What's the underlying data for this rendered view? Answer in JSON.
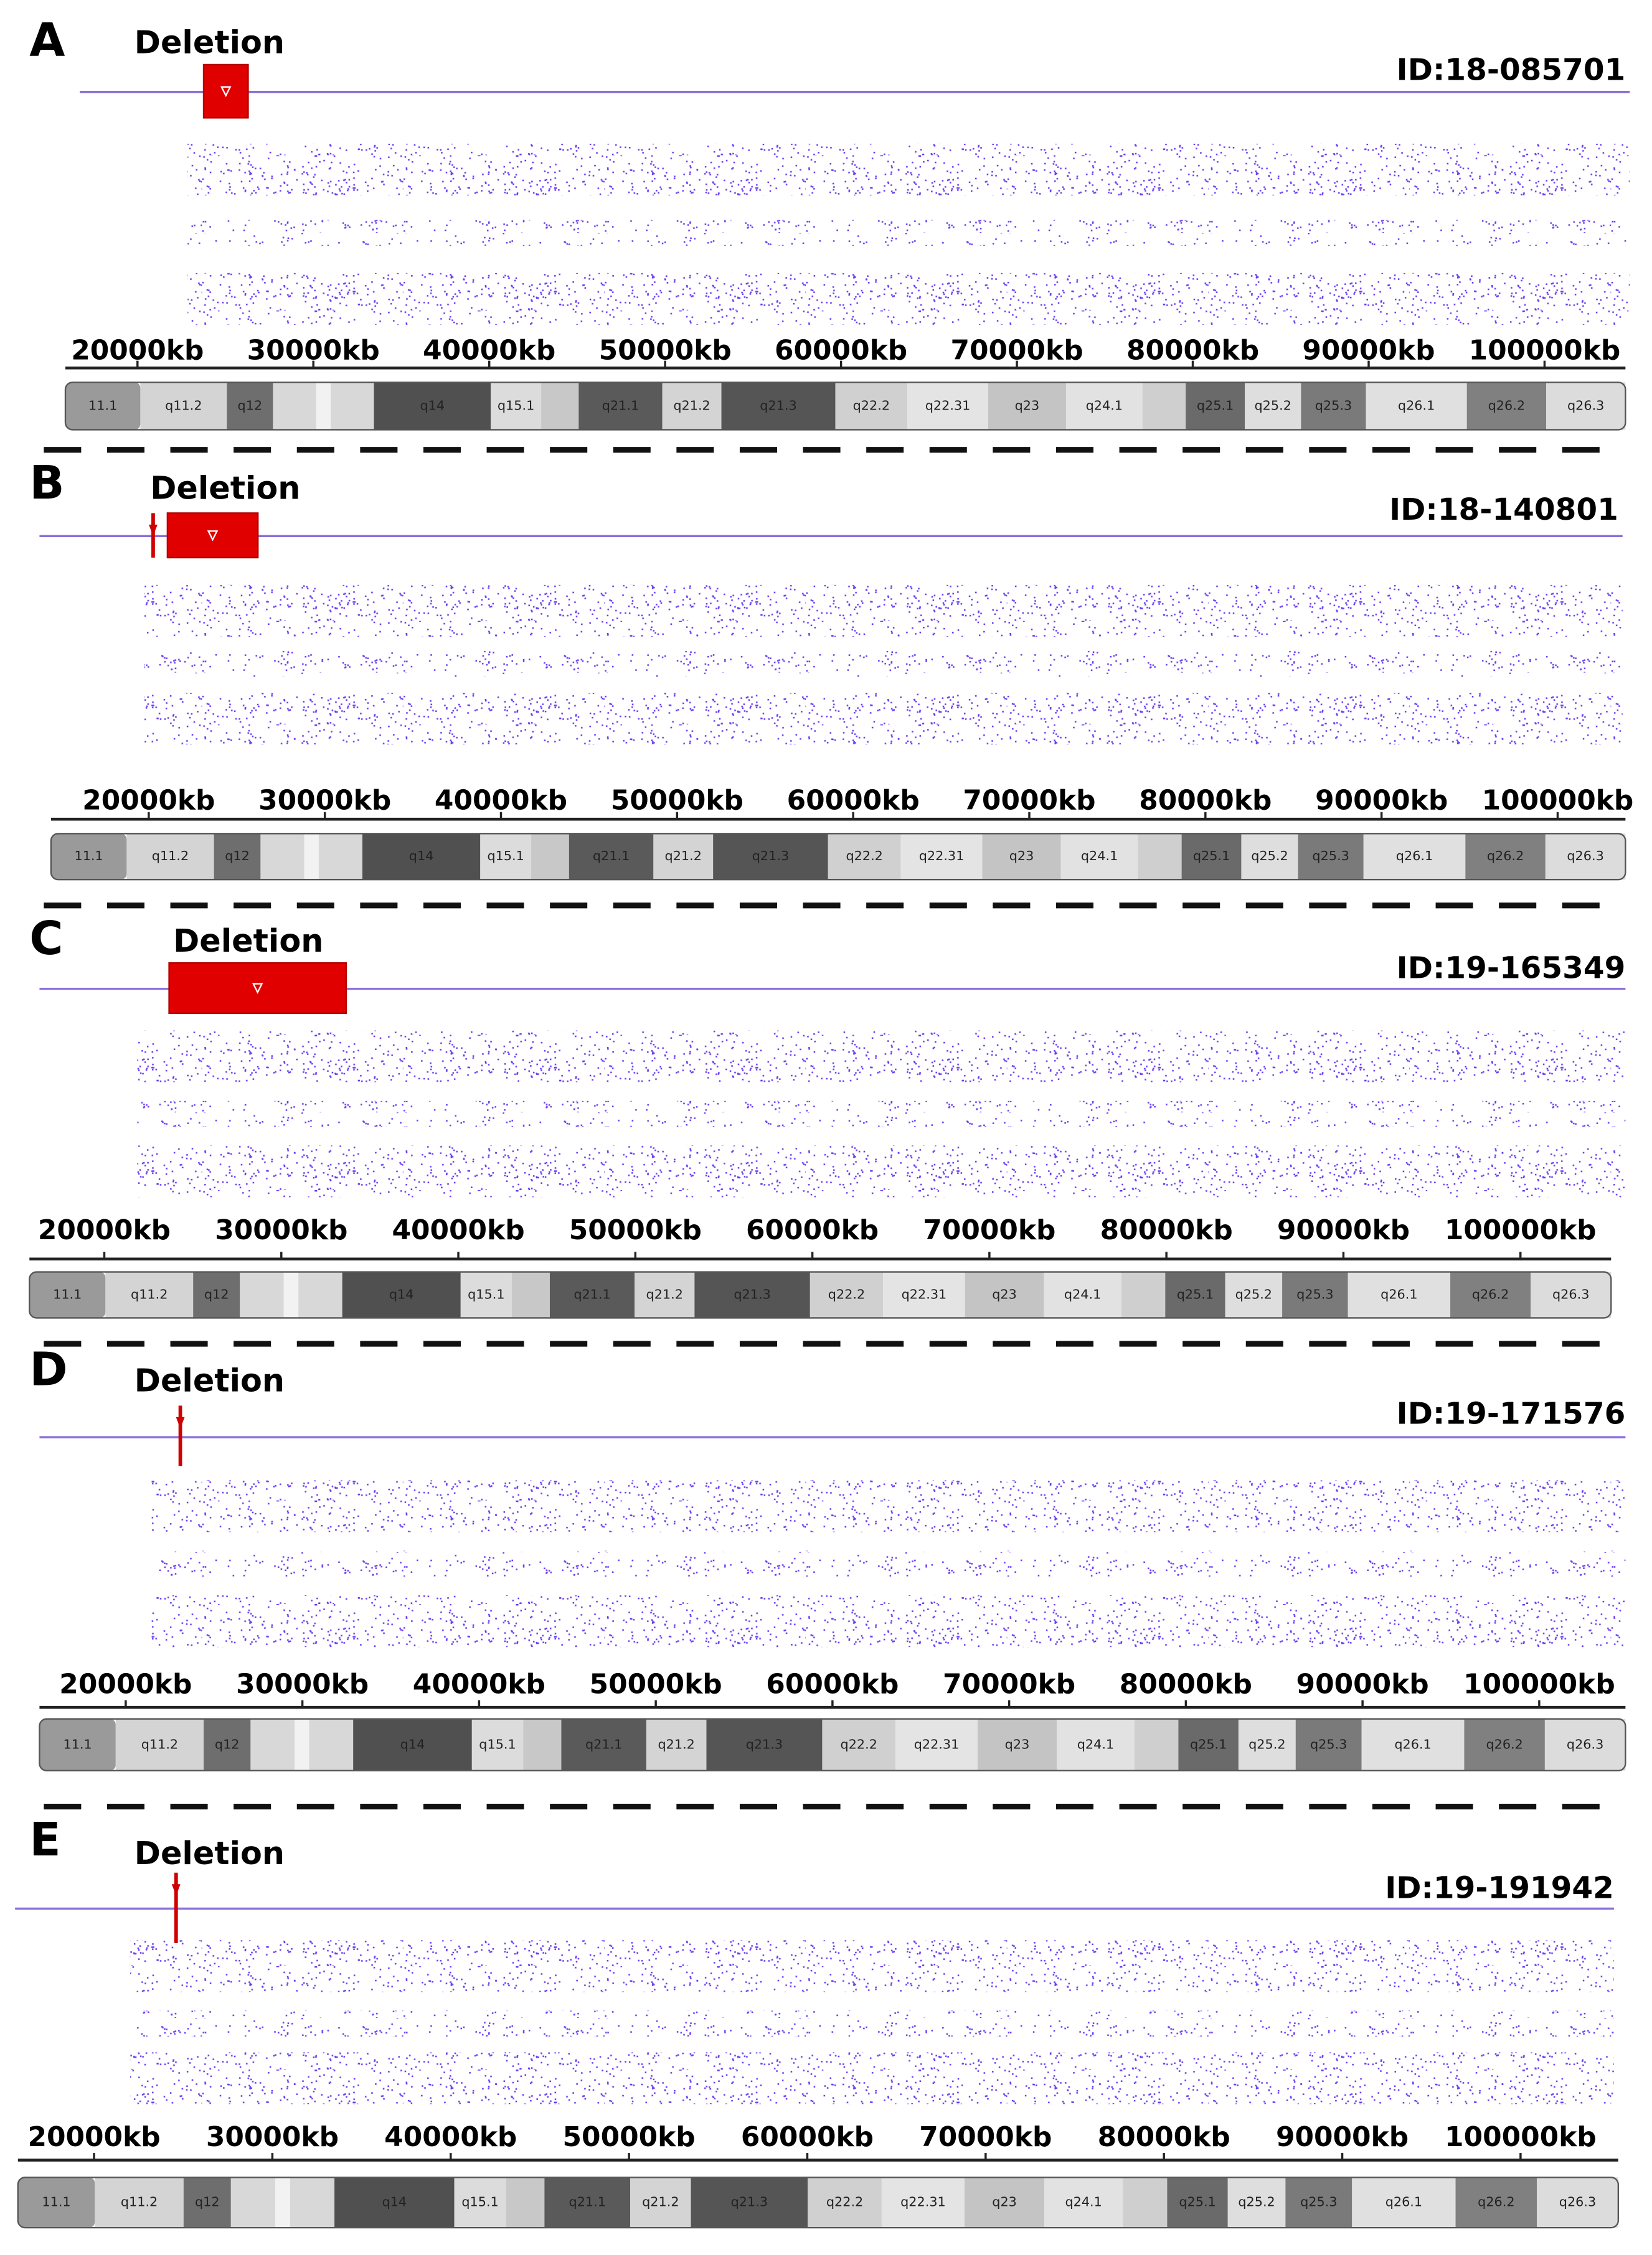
{
  "chart_data": [
    {
      "type": "cnv",
      "panel": "A",
      "annotation": "Deletion",
      "id": "ID:18-085701",
      "deletions": [
        [
          23760,
          26290
        ]
      ],
      "xlim": [
        15900,
        104600
      ],
      "xticks": [
        {
          "value": 20000,
          "label": "20000kb"
        },
        {
          "value": 30000,
          "label": "30000kb"
        },
        {
          "value": 40000,
          "label": "40000kb"
        },
        {
          "value": 50000,
          "label": "50000kb"
        },
        {
          "value": 60000,
          "label": "60000kb"
        },
        {
          "value": 70000,
          "label": "70000kb"
        },
        {
          "value": 80000,
          "label": "80000kb"
        },
        {
          "value": 90000,
          "label": "90000kb"
        },
        {
          "value": 100000,
          "label": "100000kb"
        }
      ]
    },
    {
      "type": "cnv",
      "panel": "B",
      "annotation": "Deletion",
      "id": "ID:18-140801",
      "deletions": [
        [
          20200,
          20300
        ],
        [
          21060,
          26200
        ]
      ],
      "xlim": [
        14450,
        103850
      ],
      "xticks": [
        {
          "value": 20000,
          "label": "20000kb"
        },
        {
          "value": 30000,
          "label": "30000kb"
        },
        {
          "value": 40000,
          "label": "40000kb"
        },
        {
          "value": 50000,
          "label": "50000kb"
        },
        {
          "value": 60000,
          "label": "60000kb"
        },
        {
          "value": 70000,
          "label": "70000kb"
        },
        {
          "value": 80000,
          "label": "80000kb"
        },
        {
          "value": 90000,
          "label": "90000kb"
        },
        {
          "value": 100000,
          "label": "100000kb"
        }
      ]
    },
    {
      "type": "cnv",
      "panel": "C",
      "annotation": "Deletion",
      "id": "ID:19-165349",
      "deletions": [
        [
          23660,
          33660
        ]
      ],
      "xlim": [
        15770,
        105120
      ],
      "xticks": [
        {
          "value": 20000,
          "label": "20000kb"
        },
        {
          "value": 30000,
          "label": "30000kb"
        },
        {
          "value": 40000,
          "label": "40000kb"
        },
        {
          "value": 50000,
          "label": "50000kb"
        },
        {
          "value": 60000,
          "label": "60000kb"
        },
        {
          "value": 70000,
          "label": "70000kb"
        },
        {
          "value": 80000,
          "label": "80000kb"
        },
        {
          "value": 90000,
          "label": "90000kb"
        },
        {
          "value": 100000,
          "label": "100000kb"
        }
      ]
    },
    {
      "type": "cnv",
      "panel": "D",
      "annotation": "Deletion",
      "id": "ID:19-171576",
      "deletions": [
        [
          23050,
          23130
        ]
      ],
      "xlim": [
        15120,
        104880
      ],
      "xticks": [
        {
          "value": 20000,
          "label": "20000kb"
        },
        {
          "value": 30000,
          "label": "30000kb"
        },
        {
          "value": 40000,
          "label": "40000kb"
        },
        {
          "value": 50000,
          "label": "50000kb"
        },
        {
          "value": 60000,
          "label": "60000kb"
        },
        {
          "value": 70000,
          "label": "70000kb"
        },
        {
          "value": 80000,
          "label": "80000kb"
        },
        {
          "value": 90000,
          "label": "90000kb"
        },
        {
          "value": 100000,
          "label": "100000kb"
        }
      ]
    },
    {
      "type": "cnv",
      "panel": "E",
      "annotation": "Deletion",
      "id": "ID:19-191942",
      "deletions": [
        [
          24560,
          24640
        ]
      ],
      "xlim": [
        15730,
        105480
      ],
      "xticks": [
        {
          "value": 20000,
          "label": "20000kb"
        },
        {
          "value": 30000,
          "label": "30000kb"
        },
        {
          "value": 40000,
          "label": "40000kb"
        },
        {
          "value": 50000,
          "label": "50000kb"
        },
        {
          "value": 60000,
          "label": "60000kb"
        },
        {
          "value": 70000,
          "label": "70000kb"
        },
        {
          "value": 80000,
          "label": "80000kb"
        },
        {
          "value": 90000,
          "label": "90000kb"
        },
        {
          "value": 100000,
          "label": "100000kb"
        }
      ]
    }
  ],
  "ideogram": {
    "bands": [
      {
        "name": "11.1",
        "color": "#9a9a9a"
      },
      {
        "name": "q11.2",
        "color": "#d4d4d4"
      },
      {
        "name": "q12",
        "color": "#6e6e6e"
      },
      {
        "name": null,
        "color": "#d8d8d8"
      },
      {
        "name": null,
        "color": "#f2f2f2"
      },
      {
        "name": null,
        "color": "#d8d8d8"
      },
      {
        "name": "q14",
        "color": "#505050"
      },
      {
        "name": "q15.1",
        "color": "#dcdcdc"
      },
      {
        "name": null,
        "color": "#c8c8c8"
      },
      {
        "name": "q21.1",
        "color": "#5a5a5a"
      },
      {
        "name": "q21.2",
        "color": "#d4d4d4"
      },
      {
        "name": "q21.3",
        "color": "#555555"
      },
      {
        "name": "q22.2",
        "color": "#d0d0d0"
      },
      {
        "name": "q22.31",
        "color": "#e4e4e4"
      },
      {
        "name": "q23",
        "color": "#c4c4c4"
      },
      {
        "name": "q24.1",
        "color": "#e2e2e2"
      },
      {
        "name": null,
        "color": "#cfcfcf"
      },
      {
        "name": "q25.1",
        "color": "#6a6a6a"
      },
      {
        "name": "q25.2",
        "color": "#dedede"
      },
      {
        "name": "q25.3",
        "color": "#7a7a7a"
      },
      {
        "name": "q26.1",
        "color": "#e0e0e0"
      },
      {
        "name": "q26.2",
        "color": "#808080"
      },
      {
        "name": "q26.3",
        "color": "#dcdcdc"
      }
    ]
  }
}
